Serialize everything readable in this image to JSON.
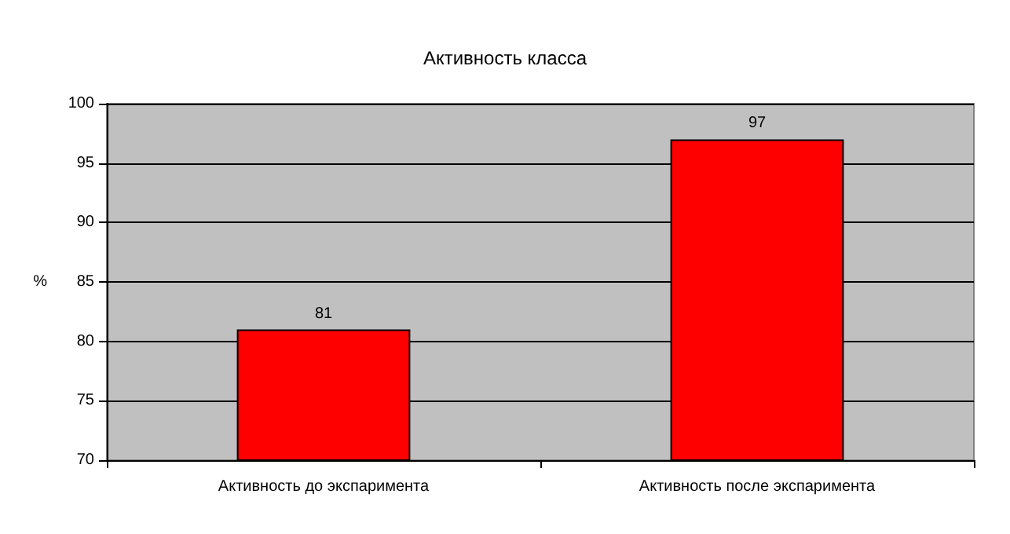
{
  "chart_data": {
    "type": "bar",
    "title": "Активность класса",
    "ylabel": "%",
    "categories": [
      "Активность до экспаримента",
      "Активность после экспаримента"
    ],
    "values": [
      81,
      97
    ],
    "color": "#ff0000",
    "ylim": [
      70,
      100
    ],
    "yticks": [
      70,
      75,
      80,
      85,
      90,
      95,
      100
    ],
    "grid": "y",
    "data_labels": true
  }
}
